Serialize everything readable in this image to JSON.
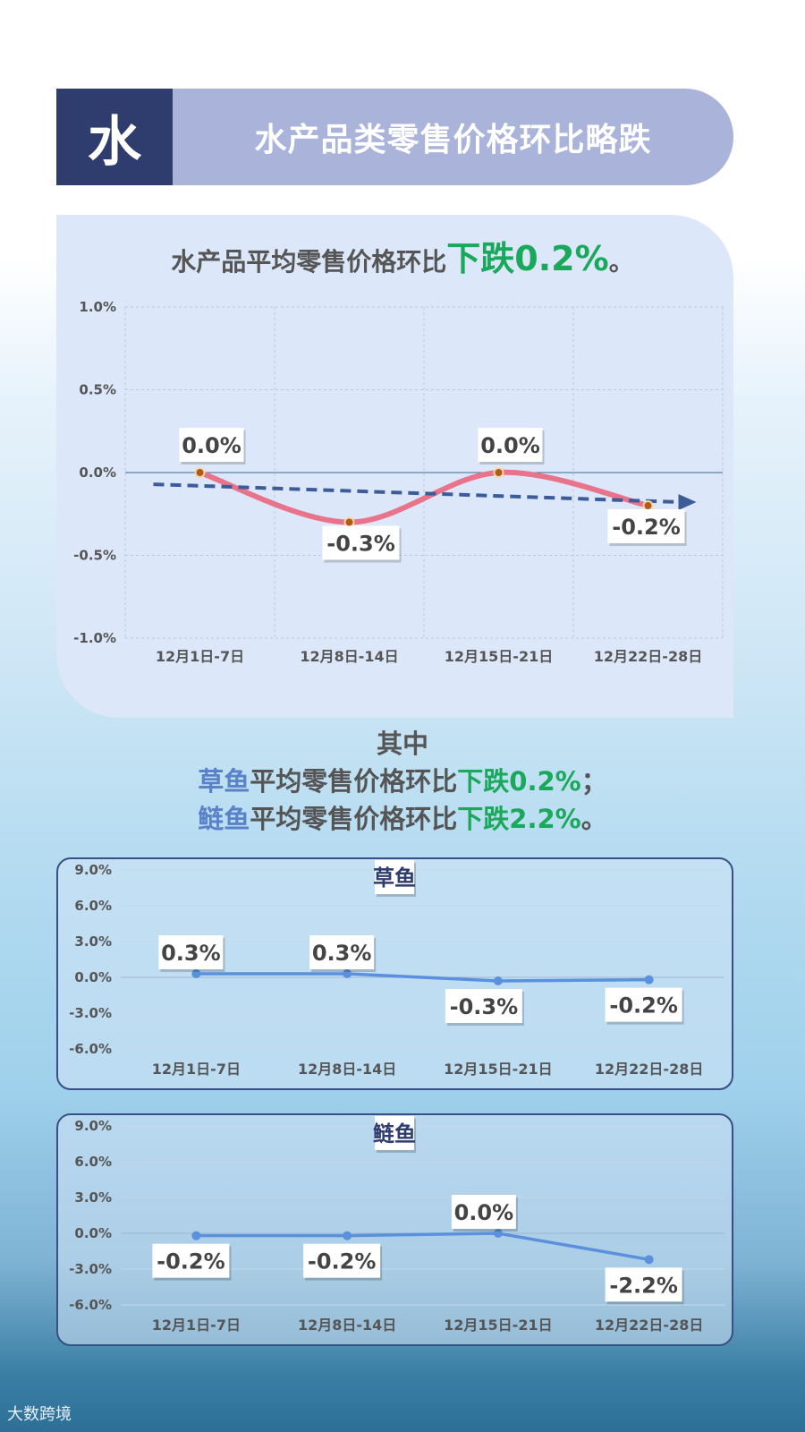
{
  "header": {
    "badge": "水",
    "title": "水产品类零售价格环比略跌"
  },
  "main": {
    "title_prefix": "水产品平均零售价格环比",
    "title_highlight": "下跌0.2%",
    "title_suffix": "。"
  },
  "summary": {
    "heading": "其中",
    "line1": {
      "fish": "草鱼",
      "text": "平均零售价格环比",
      "change": "下跌0.2%",
      "end": "；"
    },
    "line2": {
      "fish": "鲢鱼",
      "text": "平均零售价格环比",
      "change": "下跌2.2%",
      "end": "。"
    }
  },
  "footer": {
    "logo": "大数跨境"
  },
  "colors": {
    "navy": "#2e3c6e",
    "line_main": "#e8738a",
    "trend": "#3b5b99",
    "line_small": "#5a90dc",
    "green": "#1aa85a"
  },
  "chart_data": [
    {
      "type": "line",
      "categories": [
        "12月1日-7日",
        "12月8日-14日",
        "12月15日-21日",
        "12月22日-28日"
      ],
      "values": [
        0.0,
        -0.3,
        0.0,
        -0.2
      ],
      "data_labels": [
        "0.0%",
        "-0.3%",
        "0.0%",
        "-0.2%"
      ],
      "yticks": [
        "1.0%",
        "0.5%",
        "0.0%",
        "-0.5%",
        "-1.0%"
      ],
      "ylim": [
        -1.0,
        1.0
      ],
      "trendline": true,
      "grid": true
    },
    {
      "type": "line",
      "title": "草鱼",
      "categories": [
        "12月1日-7日",
        "12月8日-14日",
        "12月15日-21日",
        "12月22日-28日"
      ],
      "values": [
        0.3,
        0.3,
        -0.3,
        -0.2
      ],
      "data_labels": [
        "0.3%",
        "0.3%",
        "-0.3%",
        "-0.2%"
      ],
      "yticks": [
        "9.0%",
        "6.0%",
        "3.0%",
        "0.0%",
        "-3.0%",
        "-6.0%"
      ],
      "ylim": [
        -6.0,
        9.0
      ],
      "grid": true
    },
    {
      "type": "line",
      "title": "鲢鱼",
      "categories": [
        "12月1日-7日",
        "12月8日-14日",
        "12月15日-21日",
        "12月22日-28日"
      ],
      "values": [
        -0.2,
        -0.2,
        0.0,
        -2.2
      ],
      "data_labels": [
        "-0.2%",
        "-0.2%",
        "0.0%",
        "-2.2%"
      ],
      "yticks": [
        "9.0%",
        "6.0%",
        "3.0%",
        "0.0%",
        "-3.0%",
        "-6.0%"
      ],
      "ylim": [
        -6.0,
        9.0
      ],
      "grid": true
    }
  ]
}
